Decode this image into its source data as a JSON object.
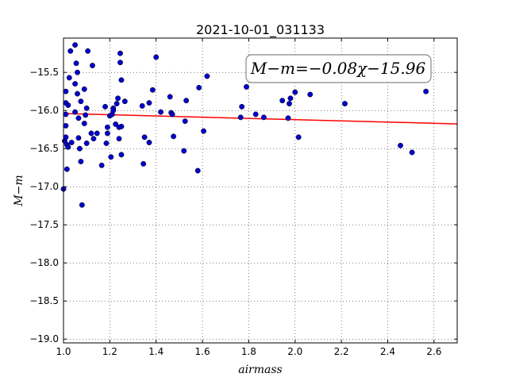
{
  "chart_data": {
    "type": "scatter",
    "title": "2021-10-01_031133",
    "xlabel": "airmass",
    "ylabel": "M−m",
    "annotation": "M−m=−0.08χ−15.96",
    "xlim": [
      1.0,
      2.7
    ],
    "ylim": [
      -19.05,
      -15.05
    ],
    "x_ticks": [
      1.0,
      1.2,
      1.4,
      1.6,
      1.8,
      2.0,
      2.2,
      2.4,
      2.6
    ],
    "x_tick_labels": [
      "1.0",
      "1.2",
      "1.4",
      "1.6",
      "1.8",
      "2.0",
      "2.2",
      "2.4",
      "2.6"
    ],
    "y_ticks": [
      -15.5,
      -16.0,
      -16.5,
      -17.0,
      -17.5,
      -18.0,
      -18.5,
      -19.0
    ],
    "y_tick_labels": [
      "−15.5",
      "−16.0",
      "−16.5",
      "−17.0",
      "−17.5",
      "−18.0",
      "−18.5",
      "−19.0"
    ],
    "grid": true,
    "fit_line": {
      "slope": -0.08,
      "intercept": -15.96,
      "color": "#ff0000"
    },
    "point_color": "#0000cc",
    "points": [
      [
        1.0,
        -17.03
      ],
      [
        1.005,
        -16.4
      ],
      [
        1.01,
        -15.75
      ],
      [
        1.01,
        -15.9
      ],
      [
        1.01,
        -16.05
      ],
      [
        1.01,
        -16.2
      ],
      [
        1.01,
        -16.35
      ],
      [
        1.015,
        -16.45
      ],
      [
        1.015,
        -16.77
      ],
      [
        1.02,
        -15.93
      ],
      [
        1.02,
        -16.48
      ],
      [
        1.025,
        -15.57
      ],
      [
        1.03,
        -15.22
      ],
      [
        1.035,
        -16.42
      ],
      [
        1.05,
        -15.14
      ],
      [
        1.05,
        -15.65
      ],
      [
        1.05,
        -16.02
      ],
      [
        1.055,
        -15.38
      ],
      [
        1.06,
        -15.5
      ],
      [
        1.06,
        -15.78
      ],
      [
        1.065,
        -16.1
      ],
      [
        1.065,
        -16.36
      ],
      [
        1.07,
        -16.5
      ],
      [
        1.075,
        -16.67
      ],
      [
        1.075,
        -15.88
      ],
      [
        1.08,
        -17.24
      ],
      [
        1.09,
        -15.72
      ],
      [
        1.09,
        -16.17
      ],
      [
        1.095,
        -16.06
      ],
      [
        1.1,
        -16.43
      ],
      [
        1.1,
        -15.97
      ],
      [
        1.105,
        -15.22
      ],
      [
        1.12,
        -16.3
      ],
      [
        1.125,
        -15.41
      ],
      [
        1.13,
        -16.37
      ],
      [
        1.145,
        -16.3
      ],
      [
        1.165,
        -16.72
      ],
      [
        1.18,
        -15.95
      ],
      [
        1.185,
        -16.43
      ],
      [
        1.19,
        -16.3
      ],
      [
        1.19,
        -16.22
      ],
      [
        1.2,
        -16.07
      ],
      [
        1.205,
        -16.61
      ],
      [
        1.21,
        -16.05
      ],
      [
        1.215,
        -15.97
      ],
      [
        1.215,
        -16.0
      ],
      [
        1.225,
        -16.18
      ],
      [
        1.23,
        -15.91
      ],
      [
        1.235,
        -15.84
      ],
      [
        1.24,
        -16.22
      ],
      [
        1.24,
        -16.37
      ],
      [
        1.245,
        -15.25
      ],
      [
        1.245,
        -15.37
      ],
      [
        1.25,
        -15.6
      ],
      [
        1.25,
        -16.58
      ],
      [
        1.25,
        -16.21
      ],
      [
        1.265,
        -15.88
      ],
      [
        1.34,
        -15.94
      ],
      [
        1.345,
        -16.7
      ],
      [
        1.35,
        -16.35
      ],
      [
        1.37,
        -16.42
      ],
      [
        1.37,
        -15.9
      ],
      [
        1.385,
        -15.73
      ],
      [
        1.4,
        -15.3
      ],
      [
        1.42,
        -16.02
      ],
      [
        1.46,
        -15.82
      ],
      [
        1.465,
        -16.03
      ],
      [
        1.47,
        -16.05
      ],
      [
        1.475,
        -16.34
      ],
      [
        1.52,
        -16.53
      ],
      [
        1.525,
        -16.14
      ],
      [
        1.53,
        -15.87
      ],
      [
        1.58,
        -16.79
      ],
      [
        1.585,
        -15.7
      ],
      [
        1.605,
        -16.27
      ],
      [
        1.62,
        -15.55
      ],
      [
        1.765,
        -16.09
      ],
      [
        1.77,
        -15.95
      ],
      [
        1.79,
        -15.69
      ],
      [
        1.83,
        -16.05
      ],
      [
        1.865,
        -16.09
      ],
      [
        1.945,
        -15.87
      ],
      [
        1.97,
        -16.1
      ],
      [
        1.975,
        -15.91
      ],
      [
        1.98,
        -15.84
      ],
      [
        2.0,
        -15.76
      ],
      [
        2.015,
        -16.35
      ],
      [
        2.065,
        -15.79
      ],
      [
        2.215,
        -15.91
      ],
      [
        2.455,
        -16.46
      ],
      [
        2.505,
        -16.55
      ],
      [
        2.565,
        -15.75
      ]
    ]
  }
}
